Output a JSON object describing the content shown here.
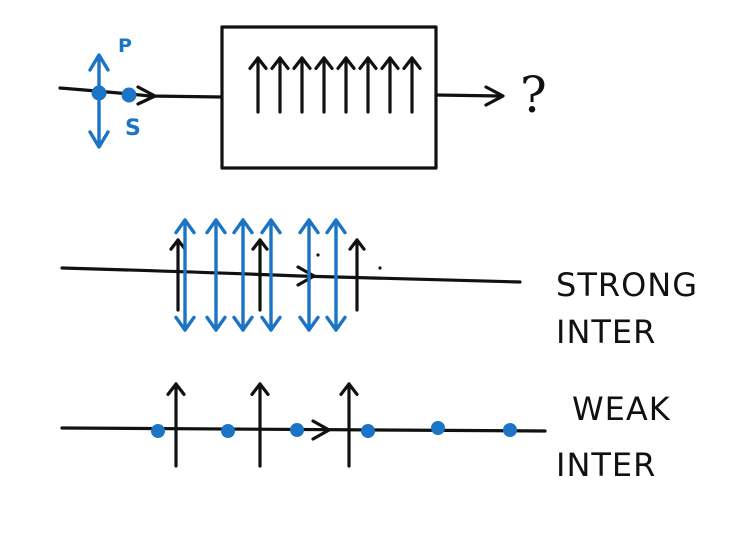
{
  "colors": {
    "ink": "#111111",
    "polarization": "#1c74c4"
  },
  "labels": {
    "p_label": "P",
    "s_label": "S",
    "question_mark": "?",
    "strong_line1": "STRONG",
    "strong_line2": "INTER",
    "weak_line1": "WEAK",
    "weak_line2": "INTER"
  }
}
